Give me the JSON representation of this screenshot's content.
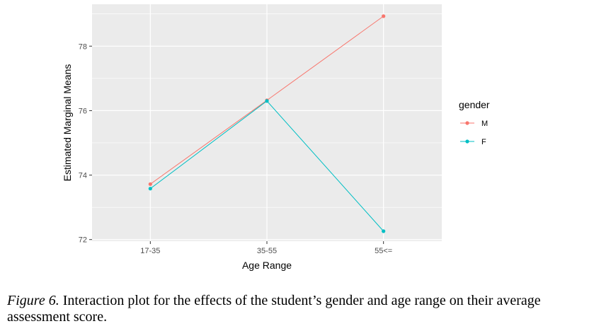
{
  "chart_data": {
    "type": "line",
    "categories": [
      "17-35",
      "35-55",
      "55<="
    ],
    "series": [
      {
        "name": "M",
        "values": [
          73.72,
          76.32,
          78.93
        ],
        "color": "#F8766D"
      },
      {
        "name": "F",
        "values": [
          73.58,
          76.3,
          72.26
        ],
        "color": "#00BFC4"
      }
    ],
    "xlabel": "Age Range",
    "ylabel": "Estimated Marginal Means",
    "ylim": [
      71.95,
      79.3
    ],
    "yticks": [
      72,
      74,
      76,
      78
    ],
    "ytick_labels": [
      "72",
      "74",
      "76",
      "78"
    ],
    "legend": {
      "title": "gender",
      "position": "right"
    },
    "grid": true,
    "panel_background": "#EBEBEB",
    "grid_color": "#FFFFFF"
  },
  "caption": {
    "label": "Figure 6.",
    "text": " Interaction plot for the effects of the student’s gender and age range on their average assessment score."
  }
}
